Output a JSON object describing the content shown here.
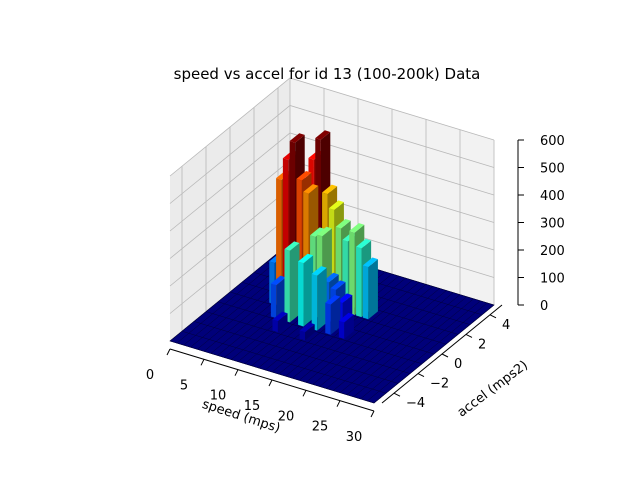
{
  "chart_data": {
    "type": "bar3d",
    "title": "speed vs accel for id 13 (100-200k) Data",
    "xlabel": "speed (mps)",
    "ylabel": "accel (mps2)",
    "zlabel": "",
    "xlim": [
      0,
      30
    ],
    "ylim": [
      -5,
      5
    ],
    "zlim": [
      0,
      600
    ],
    "xticks": [
      "0",
      "5",
      "10",
      "15",
      "20",
      "25",
      "30"
    ],
    "yticks": [
      "−4",
      "−2",
      "0",
      "2",
      "4"
    ],
    "zticks": [
      "0",
      "100",
      "200",
      "300",
      "400",
      "500",
      "600"
    ],
    "grid": true,
    "colormap": "jet",
    "bars": [
      {
        "x": 6,
        "y": 0.5,
        "z": 150
      },
      {
        "x": 7,
        "y": 0.5,
        "z": 460
      },
      {
        "x": 8,
        "y": 0.5,
        "z": 540
      },
      {
        "x": 9,
        "y": 0.5,
        "z": 610
      },
      {
        "x": 10,
        "y": 0.5,
        "z": 480
      },
      {
        "x": 11,
        "y": 0.5,
        "z": 440
      },
      {
        "x": 12,
        "y": 0.5,
        "z": 290
      },
      {
        "x": 13,
        "y": 0.5,
        "z": 300
      },
      {
        "x": 14,
        "y": 0.5,
        "z": 140
      },
      {
        "x": 15,
        "y": 0.5,
        "z": 120
      },
      {
        "x": 16,
        "y": 0.5,
        "z": 80
      },
      {
        "x": 10,
        "y": 1.5,
        "z": 520
      },
      {
        "x": 11,
        "y": 1.5,
        "z": 600
      },
      {
        "x": 12,
        "y": 1.5,
        "z": 410
      },
      {
        "x": 13,
        "y": 1.5,
        "z": 360
      },
      {
        "x": 14,
        "y": 1.5,
        "z": 300
      },
      {
        "x": 15,
        "y": 1.5,
        "z": 260
      },
      {
        "x": 16,
        "y": 1.5,
        "z": 300
      },
      {
        "x": 17,
        "y": 1.5,
        "z": 250
      },
      {
        "x": 18,
        "y": 1.5,
        "z": 190
      },
      {
        "x": 8,
        "y": -0.5,
        "z": 120
      },
      {
        "x": 10,
        "y": -0.5,
        "z": 260
      },
      {
        "x": 12,
        "y": -0.5,
        "z": 230
      },
      {
        "x": 14,
        "y": -0.5,
        "z": 200
      },
      {
        "x": 16,
        "y": -0.5,
        "z": 110
      },
      {
        "x": 18,
        "y": -0.5,
        "z": 60
      },
      {
        "x": 12,
        "y": 2.5,
        "z": 80
      },
      {
        "x": 16,
        "y": 2.5,
        "z": 60
      },
      {
        "x": 10,
        "y": -1.5,
        "z": 40
      },
      {
        "x": 14,
        "y": -1.5,
        "z": 30
      }
    ]
  }
}
